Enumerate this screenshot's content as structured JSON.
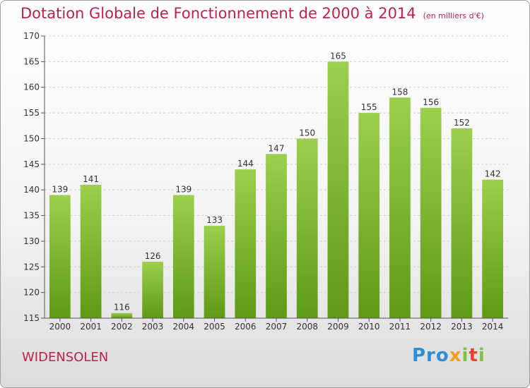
{
  "chart_data": {
    "type": "bar",
    "title": "Dotation Globale de Fonctionnement de 2000 à 2014",
    "subtitle": "(en milliers d'€)",
    "categories": [
      "2000",
      "2001",
      "2002",
      "2003",
      "2004",
      "2005",
      "2006",
      "2007",
      "2008",
      "2009",
      "2010",
      "2011",
      "2012",
      "2013",
      "2014"
    ],
    "values": [
      139,
      141,
      116,
      126,
      139,
      133,
      144,
      147,
      150,
      165,
      155,
      158,
      156,
      152,
      142
    ],
    "ylim": [
      115,
      170
    ],
    "yticks": [
      115,
      120,
      125,
      130,
      135,
      140,
      145,
      150,
      155,
      160,
      165,
      170
    ],
    "grid": true,
    "xlabel": "",
    "ylabel": ""
  },
  "commune": "WIDENSOLEN",
  "logo": {
    "p1": "Pro",
    "p2": "x",
    "p3": "i",
    "p4": "t",
    "p5": "i"
  },
  "colors": {
    "title": "#c0204d",
    "bar_top": "#9ccf4d",
    "bar_bottom": "#5e9a16",
    "grid": "#cfcfcf"
  }
}
